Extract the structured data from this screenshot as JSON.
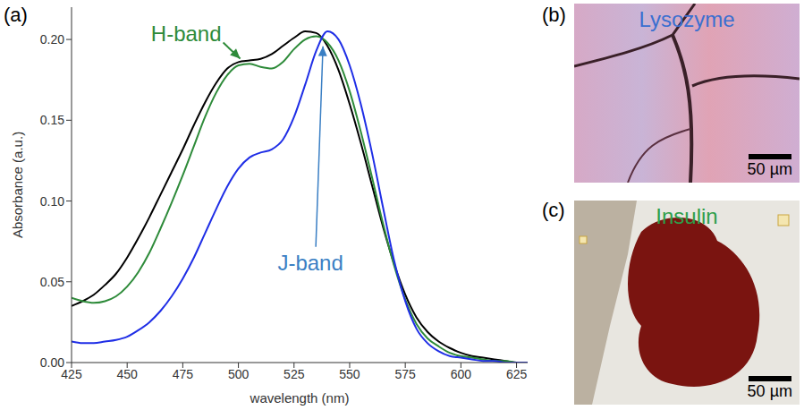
{
  "chart_data": {
    "type": "line",
    "x_label": "wavelength (nm)",
    "y_label": "Absorbance (a.u.)",
    "xlim": [
      425,
      630
    ],
    "xticks": [
      425,
      450,
      475,
      500,
      525,
      550,
      575,
      600,
      625
    ],
    "ylim": [
      0,
      0.22
    ],
    "yticks": [
      {
        "value": 0,
        "label": "0.00"
      },
      {
        "value": 0.05,
        "label": "0.05"
      },
      {
        "value": 0.1,
        "label": "0.10"
      },
      {
        "value": 0.15,
        "label": "0.15"
      },
      {
        "value": 0.2,
        "label": "0.20"
      }
    ],
    "grid": false,
    "x": [
      425,
      430,
      435,
      440,
      445,
      450,
      455,
      460,
      465,
      470,
      475,
      480,
      485,
      490,
      495,
      500,
      505,
      510,
      515,
      520,
      525,
      530,
      535,
      540,
      545,
      550,
      555,
      560,
      565,
      570,
      575,
      580,
      585,
      590,
      595,
      600,
      605,
      610,
      615,
      620,
      625,
      630
    ],
    "series": [
      {
        "color": "#000000",
        "values": [
          0.035,
          0.038,
          0.042,
          0.048,
          0.055,
          0.065,
          0.077,
          0.09,
          0.104,
          0.118,
          0.132,
          0.147,
          0.161,
          0.173,
          0.182,
          0.186,
          0.187,
          0.188,
          0.191,
          0.196,
          0.201,
          0.205,
          0.204,
          0.196,
          0.181,
          0.16,
          0.136,
          0.11,
          0.084,
          0.061,
          0.042,
          0.028,
          0.019,
          0.013,
          0.009,
          0.006,
          0.004,
          0.003,
          0.002,
          0.001,
          0,
          0
        ]
      },
      {
        "color": "#2e8b3a",
        "values": [
          0.04,
          0.038,
          0.037,
          0.038,
          0.041,
          0.047,
          0.056,
          0.068,
          0.083,
          0.099,
          0.116,
          0.134,
          0.152,
          0.167,
          0.178,
          0.184,
          0.185,
          0.183,
          0.182,
          0.186,
          0.194,
          0.2,
          0.202,
          0.198,
          0.187,
          0.168,
          0.143,
          0.115,
          0.086,
          0.06,
          0.039,
          0.024,
          0.015,
          0.01,
          0.006,
          0.004,
          0.003,
          0.002,
          0.001,
          0.001,
          0,
          0
        ]
      },
      {
        "color": "#1f2ee6",
        "values": [
          0.013,
          0.012,
          0.012,
          0.013,
          0.014,
          0.016,
          0.02,
          0.025,
          0.032,
          0.041,
          0.052,
          0.065,
          0.08,
          0.095,
          0.109,
          0.12,
          0.127,
          0.13,
          0.132,
          0.138,
          0.152,
          0.172,
          0.193,
          0.205,
          0.2,
          0.184,
          0.16,
          0.13,
          0.096,
          0.063,
          0.038,
          0.021,
          0.012,
          0.007,
          0.004,
          0.003,
          0.002,
          0.001,
          0.001,
          0,
          0,
          0
        ]
      }
    ],
    "annotations": [
      {
        "text": "H-band",
        "x": 502,
        "y": 0.187,
        "color": "#2e8b3a"
      },
      {
        "text": "J-band",
        "x": 538,
        "y": 0.198,
        "color": "#3a7fc4"
      }
    ]
  },
  "panels": [
    {
      "label": "(a)"
    },
    {
      "label": "(b)",
      "caption": "Lysozyme",
      "scale_bar": "50 µm"
    },
    {
      "label": "(c)",
      "caption": "Insulin",
      "scale_bar": "50 µm"
    }
  ]
}
